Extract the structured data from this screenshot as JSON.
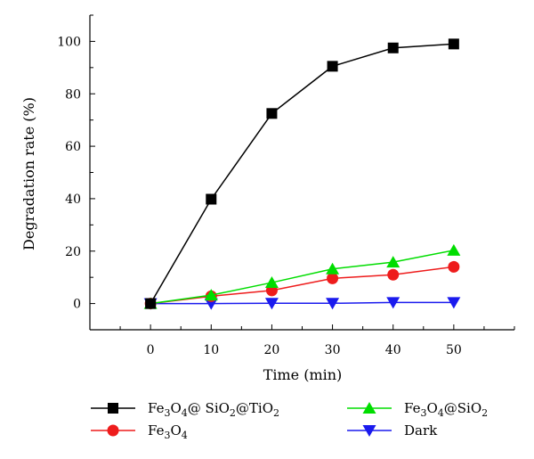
{
  "chart_data": {
    "type": "line",
    "x": [
      0,
      10,
      20,
      30,
      40,
      50
    ],
    "xlabel": "Time (min)",
    "ylabel": "Degradation rate (%)",
    "xlim": [
      -10,
      60
    ],
    "ylim": [
      -10,
      110
    ],
    "xticks": [
      0,
      10,
      20,
      30,
      40,
      50
    ],
    "yticks": [
      0,
      20,
      40,
      60,
      80,
      100
    ],
    "grid": false,
    "legend_position": "bottom",
    "series": [
      {
        "name": "Fe3O4@ SiO2@TiO2",
        "color": "#000000",
        "marker": "square",
        "values": [
          0,
          39.8,
          72.5,
          90.5,
          97.5,
          99.0
        ]
      },
      {
        "name": "Fe3O4@SiO2",
        "color": "#00dd00",
        "marker": "triangle-up",
        "values": [
          0,
          3.2,
          8.0,
          13.2,
          15.8,
          20.3
        ]
      },
      {
        "name": "Fe3O4",
        "color": "#ee1c1c",
        "marker": "circle",
        "values": [
          0,
          2.8,
          5.0,
          9.6,
          11.0,
          14.0
        ]
      },
      {
        "name": "Dark",
        "color": "#1a1aee",
        "marker": "triangle-down",
        "values": [
          0,
          0.0,
          0.1,
          0.1,
          0.4,
          0.4
        ]
      }
    ]
  }
}
